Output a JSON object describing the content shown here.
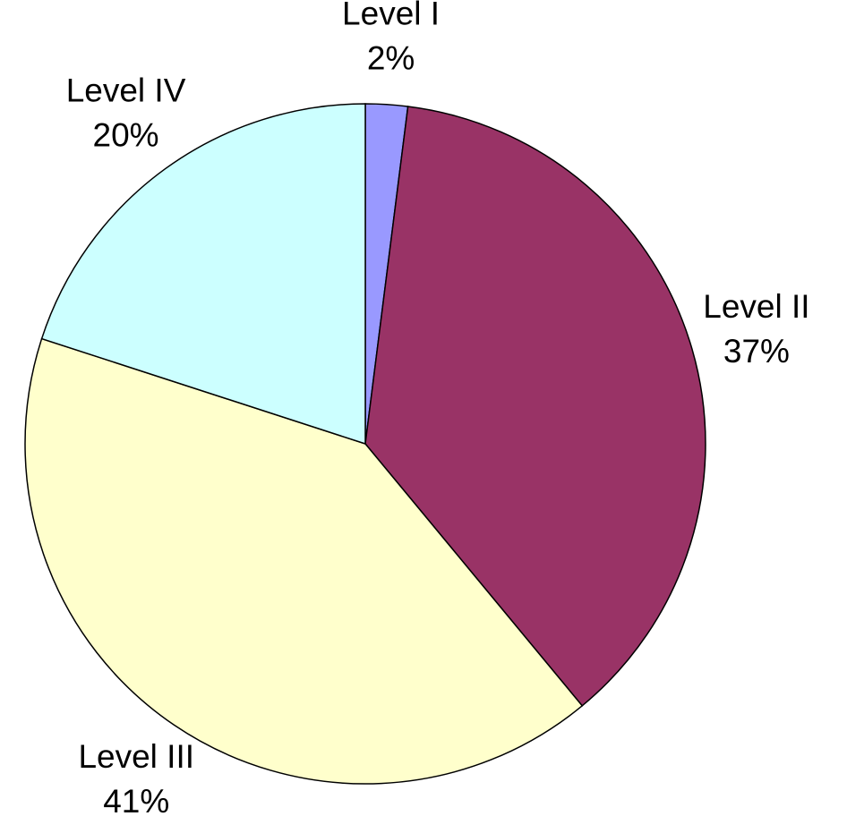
{
  "chart_data": {
    "type": "pie",
    "categories": [
      "Level I",
      "Level II",
      "Level III",
      "Level IV"
    ],
    "values": [
      2,
      37,
      41,
      20
    ],
    "value_labels": [
      "2%",
      "37%",
      "41%",
      "20%"
    ],
    "colors": [
      "#9999ff",
      "#993366",
      "#ffffcc",
      "#ccffff"
    ]
  }
}
